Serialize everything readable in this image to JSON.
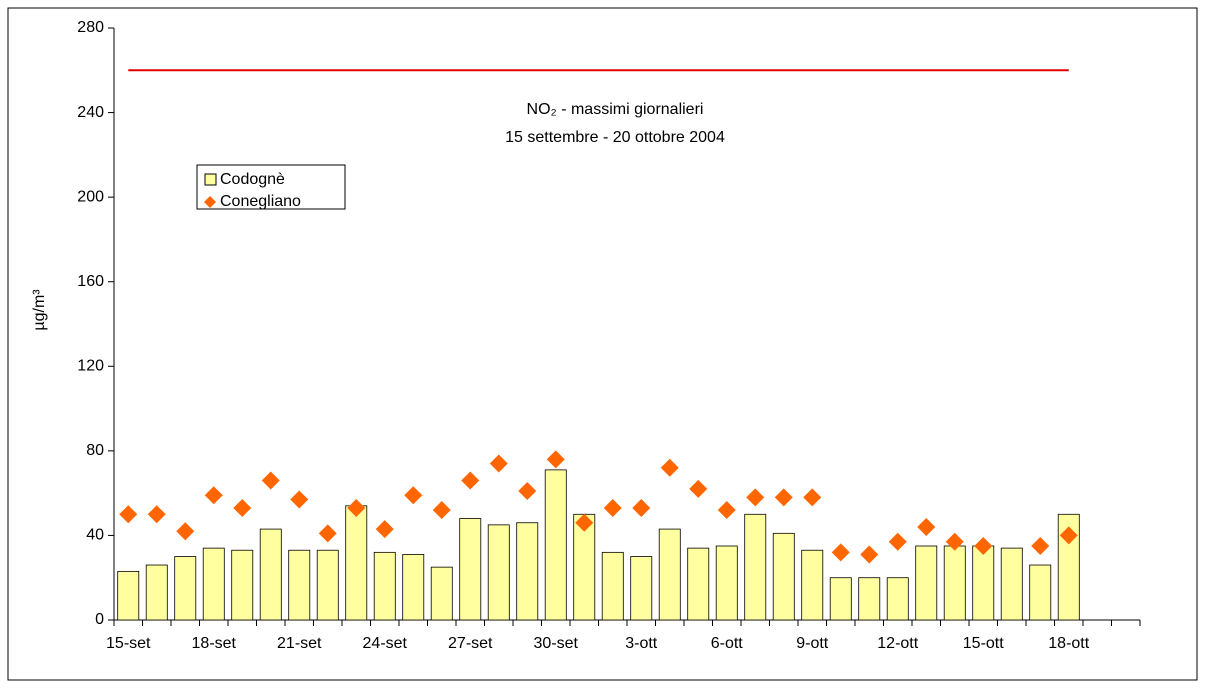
{
  "chart_data": {
    "type": "bar",
    "title": "NO₂ - massimi giornalieri",
    "subtitle": "15 settembre - 20 ottobre 2004",
    "y_label": "µg/m³",
    "categories": [
      "15-set",
      null,
      null,
      "18-set",
      null,
      null,
      "21-set",
      null,
      null,
      "24-set",
      null,
      null,
      "27-set",
      null,
      null,
      "30-set",
      null,
      null,
      "3-ott",
      null,
      null,
      "6-ott",
      null,
      null,
      "9-ott",
      null,
      null,
      "12-ott",
      null,
      null,
      "15-ott",
      null,
      null,
      "18-ott",
      null,
      null
    ],
    "series": [
      {
        "name": "Codognè",
        "type": "bar",
        "color": "#ffffa0",
        "values": [
          23,
          26,
          30,
          34,
          33,
          43,
          33,
          33,
          54,
          32,
          31,
          25,
          48,
          45,
          46,
          71,
          50,
          32,
          30,
          43,
          34,
          35,
          50,
          41,
          33,
          20,
          20,
          20,
          35,
          35,
          35,
          34,
          26,
          50,
          null,
          null
        ]
      },
      {
        "name": "Conegliano",
        "type": "scatter",
        "color": "#ff6600",
        "values": [
          50,
          50,
          42,
          59,
          53,
          66,
          57,
          41,
          53,
          43,
          59,
          52,
          66,
          74,
          61,
          76,
          46,
          53,
          53,
          72,
          62,
          52,
          58,
          58,
          58,
          32,
          31,
          37,
          44,
          37,
          35,
          null,
          35,
          40,
          null,
          null
        ]
      }
    ],
    "threshold": {
      "value": 260,
      "color": "#e00000"
    },
    "ylim": [
      0,
      280
    ],
    "yticks": [
      0,
      40,
      80,
      120,
      160,
      200,
      240,
      280
    ]
  }
}
